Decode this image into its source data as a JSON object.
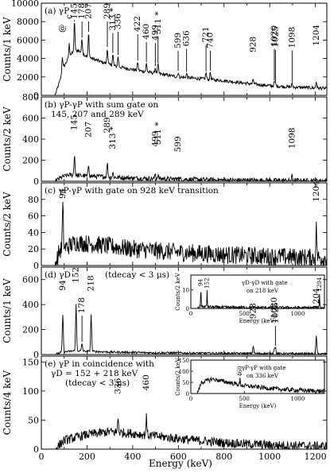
{
  "x_axis": {
    "label": "Energy (keV)",
    "ticks": [
      "0",
      "200",
      "400",
      "600",
      "800",
      "1000",
      "1200"
    ],
    "range": [
      0,
      1250
    ]
  },
  "chart_data": [
    {
      "type": "line",
      "id": "a",
      "panel_label": "(a) γP",
      "ylabel": "Counts/1 keV",
      "ylim": [
        0,
        10000
      ],
      "yticks": [
        0,
        2000,
        4000,
        6000,
        8000,
        10000
      ],
      "baseline": [
        [
          0,
          0
        ],
        [
          60,
          0
        ],
        [
          80,
          1500
        ],
        [
          100,
          3200
        ],
        [
          130,
          4500
        ],
        [
          160,
          4900
        ],
        [
          200,
          4200
        ],
        [
          300,
          3300
        ],
        [
          400,
          2800
        ],
        [
          500,
          2400
        ],
        [
          600,
          2000
        ],
        [
          700,
          1800
        ],
        [
          800,
          1600
        ],
        [
          900,
          1300
        ],
        [
          1000,
          1050
        ],
        [
          1100,
          900
        ],
        [
          1200,
          800
        ],
        [
          1250,
          750
        ]
      ],
      "noise": 180,
      "peaks": [
        {
          "e": 92,
          "h": 1700,
          "label": "@",
          "arrow": false
        },
        {
          "e": 122,
          "h": 1400,
          "label": "c",
          "arrow": false
        },
        {
          "e": 145,
          "h": 3300,
          "label": "145",
          "arrow": true
        },
        {
          "e": 178,
          "h": 1500,
          "label": "178",
          "arrow": true
        },
        {
          "e": 207,
          "h": 2600,
          "label": "207",
          "arrow": true
        },
        {
          "e": 289,
          "h": 1700,
          "label": "289",
          "arrow": true
        },
        {
          "e": 313,
          "h": 1200,
          "label": "313 *",
          "arrow": true
        },
        {
          "e": 336,
          "h": 1100,
          "label": "336",
          "arrow": true
        },
        {
          "e": 422,
          "h": 900,
          "label": "422",
          "arrow": true
        },
        {
          "e": 460,
          "h": 900,
          "label": "460",
          "arrow": true
        },
        {
          "e": 499,
          "h": 600,
          "label": "499",
          "arrow": true
        },
        {
          "e": 511,
          "h": 1000,
          "label": "511 *",
          "arrow": true
        },
        {
          "e": 599,
          "h": 500,
          "label": "599",
          "arrow": true
        },
        {
          "e": 636,
          "h": 450,
          "label": "636",
          "arrow": true
        },
        {
          "e": 721,
          "h": 700,
          "label": "721",
          "arrow": true
        },
        {
          "e": 740,
          "h": 800,
          "label": "740",
          "arrow": true
        },
        {
          "e": 928,
          "h": 500,
          "label": "928",
          "arrow": false
        },
        {
          "e": 1020,
          "h": 400,
          "label": "1020",
          "arrow": true
        },
        {
          "e": 1025,
          "h": 300,
          "label": "1025",
          "arrow": true
        },
        {
          "e": 1098,
          "h": 350,
          "label": "1098",
          "arrow": true
        },
        {
          "e": 1204,
          "h": 700,
          "label": "1204",
          "arrow": false
        }
      ]
    },
    {
      "type": "line",
      "id": "b",
      "panel_label": "(b) γP-γP with sum gate on",
      "panel_label2": "145, 207 and 289 keV",
      "ylabel": "Counts/2 keV",
      "ylim": [
        0,
        800
      ],
      "yticks": [
        0,
        200,
        400,
        600,
        800
      ],
      "baseline": [
        [
          0,
          0
        ],
        [
          60,
          0
        ],
        [
          90,
          40
        ],
        [
          120,
          60
        ],
        [
          200,
          50
        ],
        [
          400,
          30
        ],
        [
          600,
          20
        ],
        [
          800,
          12
        ],
        [
          1000,
          8
        ],
        [
          1250,
          5
        ]
      ],
      "noise": 22,
      "peaks": [
        {
          "e": 145,
          "h": 200,
          "label": "145",
          "arrow": false
        },
        {
          "e": 207,
          "h": 110,
          "label": "207",
          "arrow": false
        },
        {
          "e": 289,
          "h": 130,
          "label": "289",
          "arrow": false
        },
        {
          "e": 313,
          "h": 40,
          "label": "313 *",
          "arrow": false
        },
        {
          "e": 499,
          "h": 45,
          "label": "499",
          "arrow": false
        },
        {
          "e": 511,
          "h": 35,
          "label": "511 *",
          "arrow": false
        },
        {
          "e": 599,
          "h": 30,
          "label": "599",
          "arrow": false
        },
        {
          "e": 1098,
          "h": 45,
          "label": "1098",
          "arrow": false
        }
      ]
    },
    {
      "type": "line",
      "id": "c",
      "panel_label": "(c) γP-γP with gate on 928 keV transition",
      "ylabel": "Counts/2 keV",
      "ylim": [
        0,
        100
      ],
      "yticks": [
        0,
        20,
        40,
        60,
        80
      ],
      "baseline": [
        [
          0,
          0
        ],
        [
          60,
          0
        ],
        [
          80,
          18
        ],
        [
          150,
          28
        ],
        [
          250,
          25
        ],
        [
          400,
          20
        ],
        [
          600,
          16
        ],
        [
          800,
          13
        ],
        [
          1000,
          11
        ],
        [
          1250,
          9
        ]
      ],
      "noise": 11,
      "peaks": [
        {
          "e": 94,
          "h": 50,
          "label": "94",
          "arrow": false
        },
        {
          "e": 1204,
          "h": 35,
          "label": "1204",
          "arrow": false
        }
      ]
    },
    {
      "type": "line",
      "id": "d",
      "panel_label": "(d) γD",
      "panel_label2": "(tdecay < 3 μs)",
      "ylabel": "Counts/1 keV",
      "ylim": [
        0,
        700
      ],
      "yticks": [
        0,
        200,
        400,
        600
      ],
      "baseline": [
        [
          0,
          0
        ],
        [
          60,
          0
        ],
        [
          90,
          20
        ],
        [
          150,
          30
        ],
        [
          300,
          20
        ],
        [
          500,
          14
        ],
        [
          800,
          10
        ],
        [
          1000,
          8
        ],
        [
          1250,
          6
        ]
      ],
      "noise": 8,
      "peaks": [
        {
          "e": 94,
          "h": 300,
          "label": "94",
          "arrow": false
        },
        {
          "e": 152,
          "h": 370,
          "label": "152",
          "arrow": false
        },
        {
          "e": 178,
          "h": 60,
          "label": "178",
          "arrow": true
        },
        {
          "e": 218,
          "h": 290,
          "label": "218",
          "arrow": false
        },
        {
          "e": 928,
          "h": 60,
          "label": "928",
          "arrow": false
        },
        {
          "e": 1020,
          "h": 40,
          "label": "1020",
          "arrow": false
        },
        {
          "e": 1025,
          "h": 50,
          "label": "1025",
          "arrow": true
        },
        {
          "e": 1204,
          "h": 140,
          "label": "1204",
          "arrow": false
        }
      ],
      "inset": {
        "title": "γD-γD with gate",
        "title2": "on 218 keV",
        "ylabel": "Counts/2 keV",
        "xlabel": "Energy (keV)",
        "yticks": [
          0,
          10
        ],
        "ylim": [
          0,
          18
        ],
        "xticks": [
          0,
          500,
          1000
        ],
        "xrange": [
          0,
          1250
        ],
        "baseline": [
          [
            0,
            0
          ],
          [
            60,
            0
          ],
          [
            90,
            1
          ],
          [
            300,
            0.6
          ],
          [
            1250,
            0.3
          ]
        ],
        "noise": 0.8,
        "peaks": [
          {
            "e": 94,
            "h": 12,
            "label": "94"
          },
          {
            "e": 152,
            "h": 9,
            "label": "152"
          },
          {
            "e": 1204,
            "h": 8,
            "label": "1204"
          }
        ]
      }
    },
    {
      "type": "line",
      "id": "e",
      "panel_label": "(e) γP in coincidence with",
      "panel_label2": "γD = 152 + 218 keV",
      "panel_label3": "(tdecay < 3 μs)",
      "ylabel": "Counts/4 keV",
      "ylim": [
        0,
        160
      ],
      "yticks": [
        0,
        50,
        100,
        150
      ],
      "baseline": [
        [
          0,
          0
        ],
        [
          60,
          0
        ],
        [
          100,
          15
        ],
        [
          200,
          25
        ],
        [
          300,
          30
        ],
        [
          400,
          27
        ],
        [
          600,
          18
        ],
        [
          800,
          11
        ],
        [
          1000,
          7
        ],
        [
          1250,
          5
        ]
      ],
      "noise": 8,
      "peaks": [
        {
          "e": 336,
          "h": 25,
          "label": "336",
          "arrow": false
        },
        {
          "e": 460,
          "h": 30,
          "label": "460",
          "arrow": false
        }
      ],
      "inset": {
        "title": "γP-γP with gate",
        "title2": "on 336 keV",
        "ylabel": "Counts/2 keV",
        "xlabel": "Energy (keV)",
        "yticks": [
          0,
          50,
          100,
          150
        ],
        "ylim": [
          0,
          150
        ],
        "xticks": [
          0,
          500,
          1000
        ],
        "xrange": [
          0,
          1250
        ],
        "baseline": [
          [
            0,
            0
          ],
          [
            60,
            0
          ],
          [
            100,
            50
          ],
          [
            200,
            65
          ],
          [
            300,
            55
          ],
          [
            500,
            35
          ],
          [
            800,
            20
          ],
          [
            1000,
            15
          ],
          [
            1250,
            10
          ]
        ],
        "noise": 10,
        "peaks": [
          {
            "e": 460,
            "h": 30,
            "label": "460"
          }
        ]
      }
    }
  ]
}
